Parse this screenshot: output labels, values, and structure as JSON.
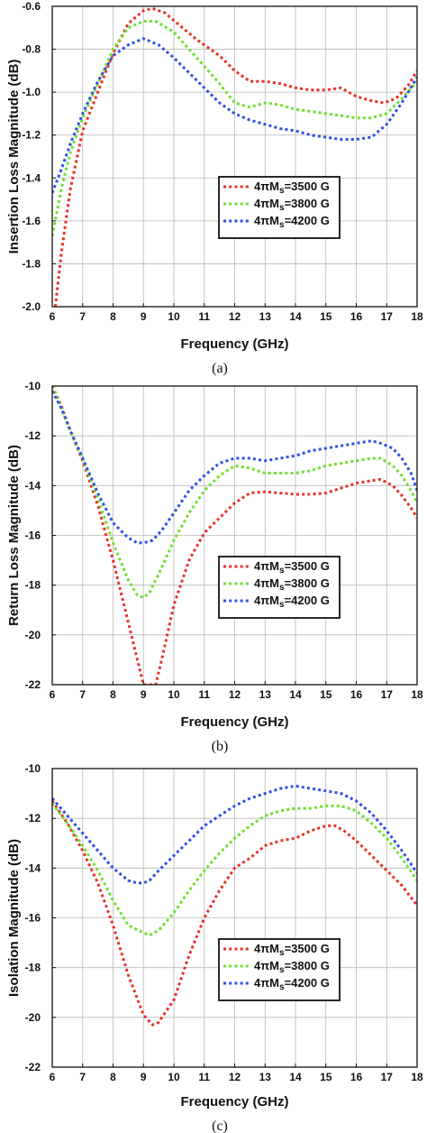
{
  "colors": {
    "s3500": "#e8312a",
    "s3800": "#6fe02e",
    "s4200": "#2f4fe8"
  },
  "chart_data": [
    {
      "type": "line",
      "caption": "(a)",
      "xlabel": "Frequency (GHz)",
      "ylabel": "Insertion Loss Magnitude (dB)",
      "xlim": [
        6,
        18
      ],
      "ylim": [
        -2.0,
        -0.6
      ],
      "xticks": [
        "6",
        "7",
        "8",
        "9",
        "10",
        "11",
        "12",
        "13",
        "14",
        "15",
        "16",
        "17",
        "18"
      ],
      "yticks": [
        "-0.6",
        "-0.8",
        "-1.0",
        "-1.2",
        "-1.4",
        "-1.6",
        "-1.8",
        "-2.0"
      ],
      "legend": {
        "placement": "center-right"
      },
      "series": [
        {
          "name": "4πMs=3500 G",
          "legend_main": "4πM",
          "legend_sub": "s",
          "legend_tail": "=3500 G",
          "color": "#e8312a",
          "x": [
            6.1,
            6.3,
            6.6,
            7.0,
            7.5,
            8.0,
            8.5,
            9.0,
            9.3,
            9.7,
            10.2,
            10.8,
            11.5,
            12.0,
            12.5,
            13.0,
            13.5,
            14.0,
            14.5,
            15.0,
            15.5,
            16.0,
            16.5,
            16.9,
            17.3,
            17.7,
            18.0
          ],
          "y": [
            -2.0,
            -1.75,
            -1.45,
            -1.18,
            -1.0,
            -0.82,
            -0.68,
            -0.62,
            -0.61,
            -0.63,
            -0.69,
            -0.76,
            -0.83,
            -0.9,
            -0.95,
            -0.95,
            -0.96,
            -0.98,
            -0.99,
            -0.99,
            -0.98,
            -1.02,
            -1.04,
            -1.05,
            -1.03,
            -0.97,
            -0.9
          ]
        },
        {
          "name": "4πMs=3800 G",
          "legend_main": "4πM",
          "legend_sub": "s",
          "legend_tail": "=3800 G",
          "color": "#6fe02e",
          "x": [
            6.0,
            6.3,
            6.6,
            7.0,
            7.5,
            8.0,
            8.5,
            9.0,
            9.4,
            10.0,
            10.5,
            11.0,
            11.5,
            12.0,
            12.5,
            13.0,
            13.5,
            14.0,
            14.5,
            15.0,
            15.5,
            16.0,
            16.5,
            17.0,
            17.5,
            18.0
          ],
          "y": [
            -1.67,
            -1.45,
            -1.28,
            -1.12,
            -0.96,
            -0.8,
            -0.7,
            -0.67,
            -0.67,
            -0.72,
            -0.8,
            -0.88,
            -0.96,
            -1.05,
            -1.07,
            -1.05,
            -1.06,
            -1.08,
            -1.09,
            -1.1,
            -1.11,
            -1.12,
            -1.12,
            -1.1,
            -1.03,
            -0.95
          ]
        },
        {
          "name": "4πMs=4200 G",
          "legend_main": "4πM",
          "legend_sub": "s",
          "legend_tail": "=4200 G",
          "color": "#2f4fe8",
          "x": [
            6.0,
            6.3,
            6.6,
            7.0,
            7.5,
            8.0,
            8.5,
            9.0,
            9.5,
            10.0,
            10.5,
            11.0,
            11.5,
            12.0,
            12.5,
            13.0,
            13.5,
            14.0,
            14.5,
            15.0,
            15.5,
            16.0,
            16.5,
            17.0,
            17.5,
            18.0
          ],
          "y": [
            -1.47,
            -1.36,
            -1.24,
            -1.1,
            -0.95,
            -0.83,
            -0.78,
            -0.75,
            -0.78,
            -0.84,
            -0.91,
            -0.98,
            -1.05,
            -1.1,
            -1.13,
            -1.15,
            -1.17,
            -1.18,
            -1.2,
            -1.21,
            -1.22,
            -1.22,
            -1.21,
            -1.15,
            -1.05,
            -0.93
          ]
        }
      ]
    },
    {
      "type": "line",
      "caption": "(b)",
      "xlabel": "Frequency (GHz)",
      "ylabel": "Return Loss Magnitude (dB)",
      "xlim": [
        6,
        18
      ],
      "ylim": [
        -22,
        -10
      ],
      "xticks": [
        "6",
        "7",
        "8",
        "9",
        "10",
        "11",
        "12",
        "13",
        "14",
        "15",
        "16",
        "17",
        "18"
      ],
      "yticks": [
        "-10",
        "-12",
        "-14",
        "-16",
        "-18",
        "-20",
        "-22"
      ],
      "legend": {
        "placement": "center-right"
      },
      "series": [
        {
          "name": "4πMs=3500 G",
          "legend_main": "4πM",
          "legend_sub": "s",
          "legend_tail": "=3500 G",
          "color": "#e8312a",
          "x": [
            6.0,
            6.3,
            6.6,
            7.0,
            7.5,
            8.0,
            8.5,
            8.8,
            9.0,
            9.1,
            9.4,
            9.6,
            10.0,
            10.5,
            11.0,
            11.5,
            12.0,
            12.5,
            13.0,
            13.5,
            14.0,
            14.5,
            15.0,
            15.5,
            16.0,
            16.5,
            16.8,
            17.2,
            17.5,
            17.8,
            18.0
          ],
          "y": [
            -10.0,
            -10.8,
            -11.8,
            -13.0,
            -14.8,
            -17.0,
            -19.5,
            -21.0,
            -22.0,
            -22.0,
            -22.0,
            -21.0,
            -18.8,
            -17.0,
            -15.9,
            -15.3,
            -14.7,
            -14.3,
            -14.25,
            -14.3,
            -14.35,
            -14.35,
            -14.3,
            -14.1,
            -13.9,
            -13.8,
            -13.75,
            -14.0,
            -14.4,
            -14.9,
            -15.3
          ]
        },
        {
          "name": "4πMs=3800 G",
          "legend_main": "4πM",
          "legend_sub": "s",
          "legend_tail": "=3800 G",
          "color": "#6fe02e",
          "x": [
            6.0,
            6.3,
            6.6,
            7.0,
            7.5,
            8.0,
            8.5,
            8.8,
            9.0,
            9.2,
            9.6,
            10.0,
            10.5,
            11.0,
            11.5,
            12.0,
            12.5,
            13.0,
            13.5,
            14.0,
            14.5,
            15.0,
            15.5,
            16.0,
            16.5,
            16.8,
            17.2,
            17.5,
            17.8,
            18.0
          ],
          "y": [
            -10.0,
            -10.9,
            -11.8,
            -12.9,
            -14.5,
            -16.3,
            -17.8,
            -18.4,
            -18.5,
            -18.3,
            -17.3,
            -16.2,
            -15.1,
            -14.2,
            -13.6,
            -13.2,
            -13.3,
            -13.5,
            -13.5,
            -13.5,
            -13.4,
            -13.2,
            -13.1,
            -13.0,
            -12.9,
            -12.9,
            -13.2,
            -13.6,
            -14.2,
            -14.7
          ]
        },
        {
          "name": "4πMs=4200 G",
          "legend_main": "4πM",
          "legend_sub": "s",
          "legend_tail": "=4200 G",
          "color": "#2f4fe8",
          "x": [
            6.0,
            6.3,
            6.6,
            7.0,
            7.5,
            8.0,
            8.5,
            8.8,
            9.0,
            9.3,
            9.6,
            10.0,
            10.5,
            11.0,
            11.5,
            12.0,
            12.5,
            13.0,
            13.5,
            14.0,
            14.5,
            15.0,
            15.5,
            16.0,
            16.5,
            16.8,
            17.2,
            17.5,
            17.8,
            18.0
          ],
          "y": [
            -10.2,
            -10.9,
            -11.8,
            -12.9,
            -14.3,
            -15.5,
            -16.1,
            -16.3,
            -16.3,
            -16.2,
            -15.8,
            -15.1,
            -14.2,
            -13.6,
            -13.1,
            -12.9,
            -12.9,
            -13.0,
            -12.9,
            -12.8,
            -12.6,
            -12.5,
            -12.4,
            -12.3,
            -12.2,
            -12.3,
            -12.5,
            -12.9,
            -13.5,
            -14.2
          ]
        }
      ]
    },
    {
      "type": "line",
      "caption": "(c)",
      "xlabel": "Frequency (GHz)",
      "ylabel": "Isolation Magnitude (dB)",
      "xlim": [
        6,
        18
      ],
      "ylim": [
        -22,
        -10
      ],
      "xticks": [
        "6",
        "7",
        "8",
        "9",
        "10",
        "11",
        "12",
        "13",
        "14",
        "15",
        "16",
        "17",
        "18"
      ],
      "yticks": [
        "-10",
        "-12",
        "-14",
        "-16",
        "-18",
        "-20",
        "-22"
      ],
      "legend": {
        "placement": "center-right"
      },
      "series": [
        {
          "name": "4πMs=3500 G",
          "legend_main": "4πM",
          "legend_sub": "s",
          "legend_tail": "=3500 G",
          "color": "#e8312a",
          "x": [
            6.0,
            6.5,
            7.0,
            7.5,
            8.0,
            8.5,
            9.0,
            9.3,
            9.5,
            10.0,
            10.5,
            11.0,
            11.5,
            12.0,
            12.5,
            13.0,
            13.5,
            14.0,
            14.5,
            15.0,
            15.3,
            15.6,
            16.0,
            16.5,
            17.0,
            17.5,
            18.0
          ],
          "y": [
            -11.3,
            -12.2,
            -13.3,
            -14.6,
            -16.3,
            -18.3,
            -19.9,
            -20.3,
            -20.2,
            -19.3,
            -17.5,
            -16.0,
            -14.9,
            -14.0,
            -13.6,
            -13.1,
            -12.9,
            -12.8,
            -12.5,
            -12.3,
            -12.3,
            -12.5,
            -12.9,
            -13.5,
            -14.1,
            -14.7,
            -15.5
          ]
        },
        {
          "name": "4πMs=3800 G",
          "legend_main": "4πM",
          "legend_sub": "s",
          "legend_tail": "=3800 G",
          "color": "#6fe02e",
          "x": [
            6.0,
            6.5,
            7.0,
            7.5,
            8.0,
            8.5,
            9.0,
            9.2,
            9.5,
            10.0,
            10.5,
            11.0,
            11.5,
            12.0,
            12.5,
            13.0,
            13.5,
            14.0,
            14.5,
            15.0,
            15.5,
            16.0,
            16.5,
            17.0,
            17.5,
            18.0
          ],
          "y": [
            -11.4,
            -12.2,
            -13.1,
            -14.1,
            -15.3,
            -16.3,
            -16.6,
            -16.7,
            -16.5,
            -15.8,
            -14.9,
            -14.1,
            -13.4,
            -12.8,
            -12.3,
            -11.9,
            -11.7,
            -11.6,
            -11.6,
            -11.5,
            -11.5,
            -11.7,
            -12.2,
            -12.8,
            -13.6,
            -14.5
          ]
        },
        {
          "name": "4πMs=4200 G",
          "legend_main": "4πM",
          "legend_sub": "s",
          "legend_tail": "=4200 G",
          "color": "#2f4fe8",
          "x": [
            6.0,
            6.5,
            7.0,
            7.5,
            8.0,
            8.5,
            8.8,
            9.0,
            9.2,
            9.5,
            10.0,
            10.5,
            11.0,
            11.5,
            12.0,
            12.5,
            13.0,
            13.5,
            14.0,
            14.5,
            15.0,
            15.5,
            16.0,
            16.5,
            17.0,
            17.5,
            18.0
          ],
          "y": [
            -11.2,
            -11.9,
            -12.6,
            -13.3,
            -14.0,
            -14.5,
            -14.6,
            -14.6,
            -14.5,
            -14.1,
            -13.5,
            -12.9,
            -12.3,
            -11.9,
            -11.5,
            -11.2,
            -11.0,
            -10.8,
            -10.7,
            -10.8,
            -10.9,
            -11.0,
            -11.3,
            -11.8,
            -12.5,
            -13.3,
            -14.2
          ]
        }
      ]
    }
  ]
}
